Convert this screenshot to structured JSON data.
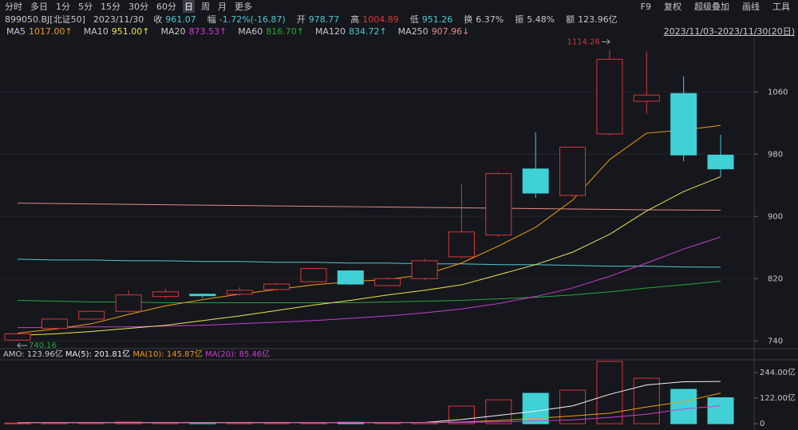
{
  "toolbar": {
    "periods": [
      "分时",
      "多日",
      "1分",
      "5分",
      "15分",
      "30分",
      "60分",
      "日",
      "周",
      "月",
      "更多"
    ],
    "active": "日",
    "tools": [
      "F9",
      "复权",
      "超级叠加",
      "画线",
      "工具"
    ]
  },
  "info": {
    "code": "899050.BJ[北证50]",
    "date": "2023/11/30",
    "fields": [
      {
        "label": "收",
        "value": "961.07"
      },
      {
        "label": "幅",
        "value": "-1.72%(-16.87)"
      },
      {
        "label": "开",
        "value": "978.77"
      },
      {
        "label": "高",
        "value": "1004.89"
      },
      {
        "label": "低",
        "value": "951.26"
      },
      {
        "label": "换",
        "value": "6.37%"
      },
      {
        "label": "振",
        "value": "5.48%"
      },
      {
        "label": "额",
        "value": "123.96亿"
      }
    ],
    "range": "2023/11/03-2023/11/30(20日)"
  },
  "chart_data": [
    {
      "type": "candlestick",
      "up_color": "#d8373b",
      "down_color": "#3fd1d6",
      "grid": true,
      "open": [
        741,
        756,
        768,
        778,
        797,
        800,
        800,
        806,
        816,
        830,
        811,
        820,
        848,
        876,
        961,
        927,
        1006,
        1048,
        1058,
        978.77
      ],
      "high": [
        750,
        769,
        779,
        805,
        807,
        801,
        809,
        815,
        834,
        831,
        822,
        846,
        942,
        957,
        1008,
        990,
        1114.26,
        1112,
        1080,
        1004.89
      ],
      "low": [
        740.16,
        755,
        767,
        776,
        795,
        795,
        798,
        804,
        815,
        812,
        810,
        818,
        846,
        874,
        924,
        925,
        1004,
        1032,
        971,
        951.26
      ],
      "close": [
        749,
        768,
        778,
        799,
        803,
        798,
        805,
        813,
        833,
        813,
        820,
        843,
        880,
        955,
        930,
        989,
        1102,
        1056,
        979,
        961.07
      ],
      "ylim": [
        730,
        1130
      ],
      "yticks": [
        740,
        820,
        900,
        980,
        1060
      ],
      "series": [
        {
          "name": "MA5",
          "label": "1017.00↑",
          "color": "#f39c12",
          "values": [
            750,
            755,
            762,
            774,
            785,
            793,
            800,
            806,
            812,
            816,
            819,
            825,
            840,
            862,
            886,
            921,
            973,
            1007,
            1011,
            1017
          ]
        },
        {
          "name": "MA10",
          "label": "951.00↑",
          "color": "#f2e34c",
          "values": [
            747,
            749,
            752,
            756,
            760,
            766,
            772,
            779,
            786,
            792,
            799,
            805,
            812,
            825,
            838,
            854,
            877,
            907,
            932,
            951
          ]
        },
        {
          "name": "MA20",
          "label": "873.53↑",
          "color": "#d03cd0",
          "values": [
            757,
            757,
            758,
            758,
            759,
            760,
            762,
            764,
            766,
            769,
            772,
            776,
            781,
            788,
            797,
            808,
            823,
            840,
            858,
            873.53
          ]
        },
        {
          "name": "MA60",
          "label": "816.70↑",
          "color": "#26a83a",
          "values": [
            792,
            791,
            790,
            790,
            789,
            789,
            789,
            789,
            789,
            789,
            790,
            791,
            792,
            794,
            796,
            799,
            803,
            808,
            812,
            816.7
          ]
        },
        {
          "name": "MA120",
          "label": "834.72↑",
          "color": "#4fc8d2",
          "values": [
            845,
            844,
            844,
            843,
            843,
            842,
            842,
            841,
            841,
            840,
            840,
            839,
            839,
            838,
            838,
            837,
            836,
            836,
            835,
            834.72
          ]
        },
        {
          "name": "MA250",
          "label": "907.96↓",
          "color": "#e58a8a",
          "values": [
            917,
            916.5,
            916,
            915.5,
            915,
            914.5,
            914,
            913.5,
            913,
            912.5,
            912,
            911.5,
            911,
            910.5,
            910,
            909.5,
            909,
            908.5,
            908.2,
            907.96
          ]
        }
      ]
    },
    {
      "type": "bar",
      "name": "AMO:",
      "label": "123.96亿",
      "values": [
        3,
        4,
        5,
        8,
        5,
        4,
        5,
        5,
        5,
        7,
        5,
        6,
        84,
        114,
        145,
        160,
        297,
        217,
        164,
        123.96
      ],
      "ylim": [
        -30,
        301
      ],
      "yticks": [
        {
          "value": 244,
          "label": "244.00亿"
        },
        {
          "value": 122,
          "label": "122.00亿"
        },
        0
      ],
      "series": [
        {
          "name": "MA(5):",
          "label": "201.81亿",
          "color": "#f2f2f2",
          "values": [
            5,
            5,
            5,
            5,
            5,
            5,
            5,
            5,
            5,
            5,
            5,
            6,
            20,
            40,
            60,
            85,
            140,
            185,
            200,
            201.81
          ]
        },
        {
          "name": "MA(10):",
          "label": "145.87亿",
          "color": "#f39c12",
          "values": [
            5,
            5,
            5,
            5,
            5,
            5,
            5,
            5,
            5,
            5,
            5,
            6,
            8,
            15,
            25,
            37,
            50,
            80,
            105,
            145.87
          ]
        },
        {
          "name": "MA(20):",
          "label": "85.46亿",
          "color": "#d03cd0",
          "values": [
            4,
            4,
            4,
            4,
            4,
            4,
            4,
            4,
            5,
            5,
            5,
            5,
            6,
            9,
            13,
            18,
            30,
            45,
            70,
            85.46
          ]
        }
      ]
    }
  ]
}
